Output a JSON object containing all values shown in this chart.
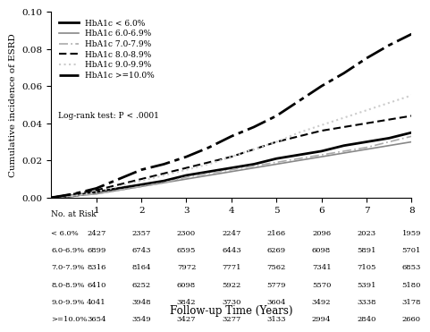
{
  "title": "",
  "xlabel": "Follow-up Time (Years)",
  "ylabel": "Cumulative incidence of ESRD",
  "xlim": [
    0,
    8
  ],
  "ylim": [
    0,
    0.1
  ],
  "yticks": [
    0.0,
    0.02,
    0.04,
    0.06,
    0.08,
    0.1
  ],
  "xticks": [
    1,
    2,
    3,
    4,
    5,
    6,
    7,
    8
  ],
  "logrank_text": "Log-rank test: P < .0001",
  "legend_labels": [
    "HbA1c < 6.0%",
    "HbA1c 6.0-6.9%",
    "HbA1c 7.0-7.9%",
    "HbA1c 8.0-8.9%",
    "HbA1c 9.0-9.9%",
    "HbA1c >=10.0%"
  ],
  "line_styles": [
    "solid",
    "solid",
    "dashdot",
    "dashed",
    "dotted",
    "dashdot"
  ],
  "line_colors": [
    "#000000",
    "#888888",
    "#aaaaaa",
    "#000000",
    "#cccccc",
    "#000000"
  ],
  "line_widths": [
    2.0,
    1.2,
    1.2,
    1.5,
    1.2,
    2.0
  ],
  "line_markers": [
    "",
    "",
    "",
    "",
    "",
    ""
  ],
  "curves": {
    "lt6": {
      "x": [
        0,
        0.5,
        1.0,
        1.5,
        2.0,
        2.5,
        3.0,
        3.5,
        4.0,
        4.5,
        5.0,
        5.5,
        6.0,
        6.5,
        7.0,
        7.5,
        8.0
      ],
      "y": [
        0.0,
        0.001,
        0.003,
        0.005,
        0.007,
        0.009,
        0.012,
        0.014,
        0.016,
        0.018,
        0.021,
        0.023,
        0.025,
        0.028,
        0.03,
        0.032,
        0.035
      ]
    },
    "6to69": {
      "x": [
        0,
        0.5,
        1.0,
        1.5,
        2.0,
        2.5,
        3.0,
        3.5,
        4.0,
        4.5,
        5.0,
        5.5,
        6.0,
        6.5,
        7.0,
        7.5,
        8.0
      ],
      "y": [
        0.0,
        0.001,
        0.002,
        0.004,
        0.006,
        0.008,
        0.01,
        0.012,
        0.014,
        0.016,
        0.018,
        0.02,
        0.022,
        0.024,
        0.026,
        0.028,
        0.03
      ]
    },
    "7to79": {
      "x": [
        0,
        0.5,
        1.0,
        1.5,
        2.0,
        2.5,
        3.0,
        3.5,
        4.0,
        4.5,
        5.0,
        5.5,
        6.0,
        6.5,
        7.0,
        7.5,
        8.0
      ],
      "y": [
        0.0,
        0.001,
        0.002,
        0.004,
        0.006,
        0.008,
        0.011,
        0.013,
        0.015,
        0.017,
        0.019,
        0.021,
        0.023,
        0.025,
        0.027,
        0.03,
        0.033
      ]
    },
    "8to89": {
      "x": [
        0,
        0.5,
        1.0,
        1.5,
        2.0,
        2.5,
        3.0,
        3.5,
        4.0,
        4.5,
        5.0,
        5.5,
        6.0,
        6.5,
        7.0,
        7.5,
        8.0
      ],
      "y": [
        0.0,
        0.002,
        0.004,
        0.007,
        0.01,
        0.013,
        0.016,
        0.019,
        0.022,
        0.026,
        0.03,
        0.033,
        0.036,
        0.038,
        0.04,
        0.042,
        0.044
      ]
    },
    "9to99": {
      "x": [
        0,
        0.5,
        1.0,
        1.5,
        2.0,
        2.5,
        3.0,
        3.5,
        4.0,
        4.5,
        5.0,
        5.5,
        6.0,
        6.5,
        7.0,
        7.5,
        8.0
      ],
      "y": [
        0.0,
        0.001,
        0.003,
        0.006,
        0.009,
        0.012,
        0.015,
        0.018,
        0.022,
        0.026,
        0.03,
        0.035,
        0.039,
        0.043,
        0.047,
        0.051,
        0.055
      ]
    },
    "ge10": {
      "x": [
        0,
        0.5,
        1.0,
        1.5,
        2.0,
        2.5,
        3.0,
        3.5,
        4.0,
        4.5,
        5.0,
        5.5,
        6.0,
        6.5,
        7.0,
        7.5,
        8.0
      ],
      "y": [
        0.0,
        0.002,
        0.005,
        0.01,
        0.015,
        0.018,
        0.022,
        0.027,
        0.033,
        0.038,
        0.044,
        0.052,
        0.06,
        0.067,
        0.075,
        0.082,
        0.088
      ]
    }
  },
  "at_risk_labels": [
    "< 6.0%",
    "6.0-6.9%",
    "7.0-7.9%",
    "8.0-8.9%",
    "9.0-9.9%",
    ">=10.0%"
  ],
  "at_risk_data": [
    [
      2427,
      2357,
      2300,
      2247,
      2166,
      2096,
      2023,
      1959
    ],
    [
      6899,
      6743,
      6595,
      6443,
      6269,
      6098,
      5891,
      5701
    ],
    [
      8316,
      8164,
      7972,
      7771,
      7562,
      7341,
      7105,
      6853
    ],
    [
      6410,
      6252,
      6098,
      5922,
      5779,
      5570,
      5391,
      5180
    ],
    [
      4041,
      3948,
      3842,
      3730,
      3604,
      3492,
      3338,
      3178
    ],
    [
      3654,
      3549,
      3427,
      3277,
      3133,
      2994,
      2840,
      2660
    ]
  ],
  "background_color": "#ffffff"
}
